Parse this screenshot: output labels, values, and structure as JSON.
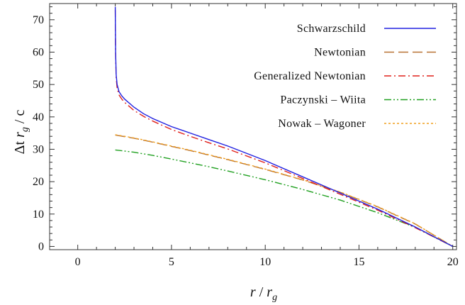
{
  "chart_data": {
    "type": "line",
    "title": "",
    "xlabel": {
      "main": "r",
      "sep": " / ",
      "sym": "r",
      "sub": "g"
    },
    "ylabel": {
      "pre": "Δt  ",
      "sym": "r",
      "sub": "g",
      "post": " / c"
    },
    "xlim": [
      -1.5,
      20.2
    ],
    "ylim": [
      -1,
      75
    ],
    "xticks": [
      0,
      5,
      10,
      15,
      20
    ],
    "yticks": [
      0,
      10,
      20,
      30,
      40,
      50,
      60,
      70
    ],
    "grid": false,
    "legend": "top-right",
    "series": [
      {
        "name": "Schwarzschild",
        "color": "#2020e0",
        "dash": "",
        "x": [
          2.0,
          2.02,
          2.05,
          2.1,
          2.2,
          2.35,
          2.5,
          3.0,
          3.5,
          4.0,
          5.0,
          6.0,
          7.0,
          8.0,
          10.0,
          12.0,
          14.0,
          16.0,
          18.0,
          20.0
        ],
        "y": [
          74.0,
          60.0,
          53.0,
          50.0,
          47.8,
          46.5,
          45.5,
          43.0,
          41.0,
          39.5,
          37.0,
          35.0,
          33.0,
          31.0,
          26.5,
          21.5,
          16.5,
          11.5,
          6.0,
          0.0
        ]
      },
      {
        "name": "Newtonian",
        "color": "#b87333",
        "dash": "14,6",
        "x": [
          2.0,
          3.0,
          4.0,
          5.0,
          6.0,
          7.0,
          8.0,
          10.0,
          12.0,
          14.0,
          16.0,
          18.0,
          20.0
        ],
        "y": [
          34.4,
          33.4,
          32.2,
          30.9,
          29.6,
          28.2,
          26.8,
          23.8,
          20.5,
          16.7,
          12.2,
          6.9,
          0.0
        ]
      },
      {
        "name": "Generalized Newtonian",
        "color": "#e0201a",
        "dash": "10,4,2,4",
        "x": [
          2.0,
          2.02,
          2.05,
          2.1,
          2.2,
          2.35,
          2.5,
          3.0,
          3.5,
          4.0,
          5.0,
          6.0,
          7.0,
          8.0,
          10.0,
          12.0,
          14.0,
          16.0,
          18.0,
          20.0
        ],
        "y": [
          73.0,
          59.0,
          52.0,
          49.0,
          46.8,
          45.5,
          44.5,
          42.0,
          40.2,
          38.7,
          36.1,
          34.0,
          32.0,
          30.1,
          25.8,
          21.0,
          16.1,
          11.2,
          5.8,
          0.0
        ]
      },
      {
        "name": "Paczynski – Wiita",
        "color": "#20a020",
        "dash": "10,3,2,3,2,3",
        "x": [
          2.0,
          3.0,
          4.0,
          5.0,
          6.0,
          7.0,
          8.0,
          10.0,
          12.0,
          14.0,
          16.0,
          18.0,
          20.0
        ],
        "y": [
          29.8,
          29.1,
          28.1,
          27.0,
          25.8,
          24.6,
          23.3,
          20.6,
          17.6,
          14.3,
          10.4,
          5.9,
          0.0
        ]
      },
      {
        "name": "Nowak – Wagoner",
        "color": "#f0a020",
        "dash": "3,3",
        "x": [
          2.0,
          3.0,
          4.0,
          5.0,
          6.0,
          7.0,
          8.0,
          10.0,
          12.0,
          14.0,
          16.0,
          18.0,
          20.0
        ],
        "y": [
          34.5,
          33.5,
          32.3,
          31.0,
          29.7,
          28.3,
          26.9,
          23.9,
          20.6,
          16.8,
          12.3,
          7.0,
          0.0
        ]
      }
    ]
  }
}
